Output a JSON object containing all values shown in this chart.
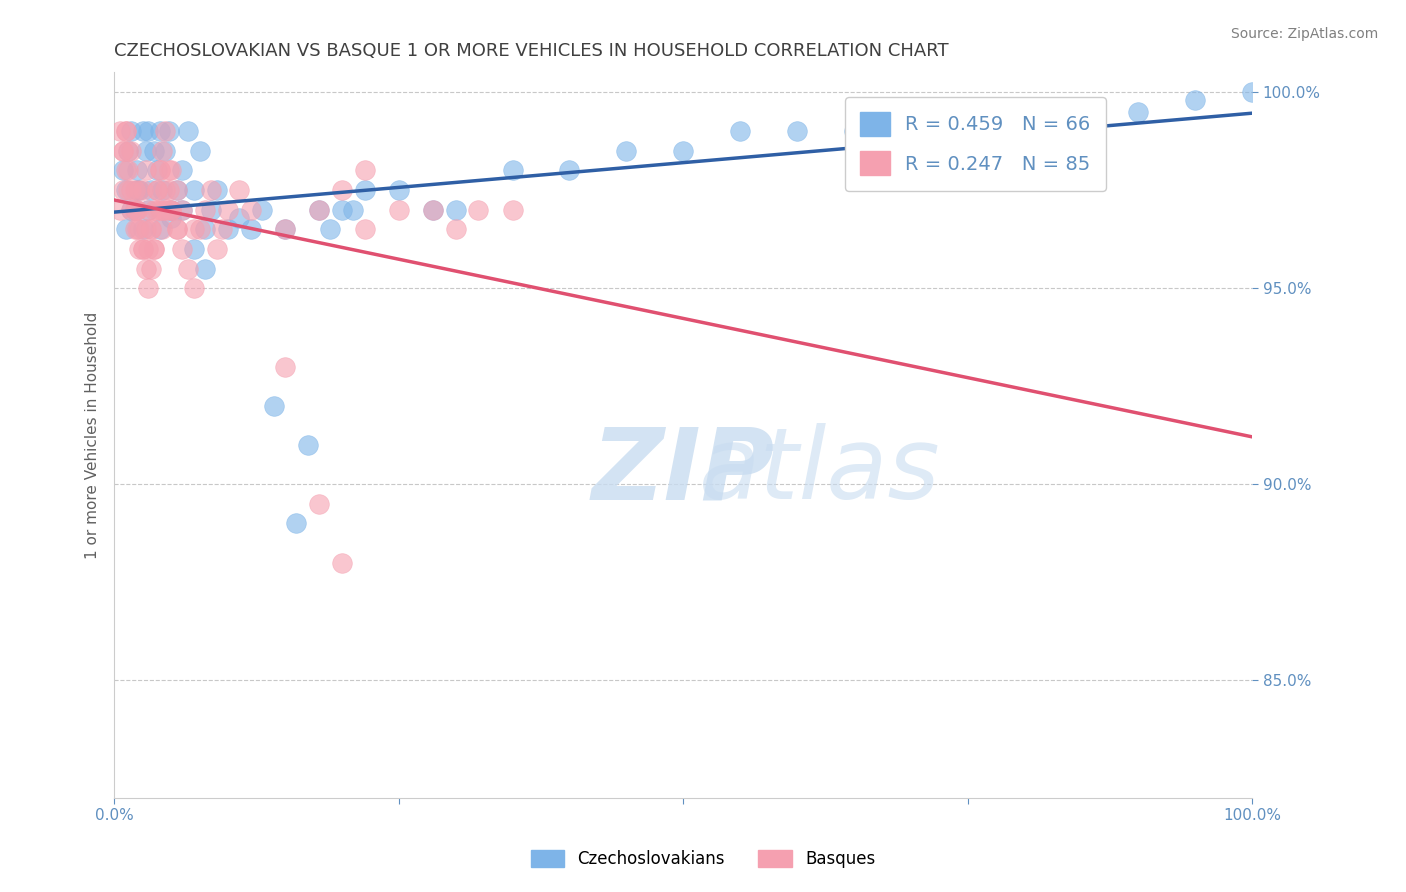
{
  "title": "CZECHOSLOVAKIAN VS BASQUE 1 OR MORE VEHICLES IN HOUSEHOLD CORRELATION CHART",
  "ylabel": "1 or more Vehicles in Household",
  "source_text": "Source: ZipAtlas.com",
  "legend_blue_r": "R = 0.459",
  "legend_blue_n": "N = 66",
  "legend_pink_r": "R = 0.247",
  "legend_pink_n": "N = 85",
  "xlim": [
    0.0,
    1.0
  ],
  "ylim": [
    0.82,
    1.005
  ],
  "yticks": [
    0.85,
    0.9,
    0.95,
    1.0
  ],
  "ytick_labels": [
    "85.0%",
    "90.0%",
    "95.0%",
    "100.0%"
  ],
  "xticks": [
    0.0,
    0.25,
    0.5,
    0.75,
    1.0
  ],
  "xtick_labels": [
    "0.0%",
    "",
    "",
    "",
    "100.0%"
  ],
  "blue_color": "#7EB4E8",
  "pink_color": "#F5A0B0",
  "blue_line_color": "#2F5FA5",
  "pink_line_color": "#E05070",
  "grid_color": "#C8C8C8",
  "title_color": "#404040",
  "axis_color": "#6090C0",
  "watermark_color": "#C8DCF0",
  "czech_x": [
    0.008,
    0.01,
    0.012,
    0.015,
    0.018,
    0.02,
    0.022,
    0.025,
    0.028,
    0.03,
    0.032,
    0.035,
    0.038,
    0.04,
    0.042,
    0.045,
    0.048,
    0.05,
    0.055,
    0.06,
    0.065,
    0.07,
    0.075,
    0.08,
    0.085,
    0.09,
    0.01,
    0.015,
    0.02,
    0.025,
    0.03,
    0.04,
    0.05,
    0.06,
    0.07,
    0.08,
    0.12,
    0.15,
    0.18,
    0.2,
    0.22,
    0.25,
    0.28,
    0.3,
    0.35,
    0.4,
    0.45,
    0.5,
    0.55,
    0.6,
    0.65,
    0.7,
    0.75,
    0.8,
    0.85,
    0.9,
    0.95,
    1.0,
    0.1,
    0.11,
    0.13,
    0.14,
    0.16,
    0.17,
    0.19,
    0.21
  ],
  "czech_y": [
    0.98,
    0.975,
    0.985,
    0.99,
    0.97,
    0.98,
    0.975,
    0.99,
    0.985,
    0.99,
    0.975,
    0.985,
    0.98,
    0.99,
    0.975,
    0.985,
    0.99,
    0.97,
    0.975,
    0.98,
    0.99,
    0.975,
    0.985,
    0.965,
    0.97,
    0.975,
    0.965,
    0.97,
    0.975,
    0.965,
    0.97,
    0.965,
    0.968,
    0.97,
    0.96,
    0.955,
    0.965,
    0.965,
    0.97,
    0.97,
    0.975,
    0.975,
    0.97,
    0.97,
    0.98,
    0.98,
    0.985,
    0.985,
    0.99,
    0.99,
    0.99,
    0.99,
    0.995,
    0.995,
    0.99,
    0.995,
    0.998,
    1.0,
    0.965,
    0.968,
    0.97,
    0.92,
    0.89,
    0.91,
    0.965,
    0.97
  ],
  "basque_x": [
    0.005,
    0.008,
    0.01,
    0.012,
    0.015,
    0.018,
    0.02,
    0.022,
    0.025,
    0.028,
    0.03,
    0.032,
    0.035,
    0.038,
    0.04,
    0.042,
    0.045,
    0.048,
    0.05,
    0.055,
    0.06,
    0.065,
    0.07,
    0.075,
    0.08,
    0.085,
    0.09,
    0.095,
    0.1,
    0.11,
    0.005,
    0.008,
    0.01,
    0.012,
    0.015,
    0.018,
    0.02,
    0.022,
    0.025,
    0.028,
    0.03,
    0.032,
    0.035,
    0.038,
    0.04,
    0.042,
    0.045,
    0.048,
    0.05,
    0.055,
    0.12,
    0.15,
    0.18,
    0.2,
    0.22,
    0.25,
    0.3,
    0.35,
    0.28,
    0.32,
    0.15,
    0.18,
    0.2,
    0.22,
    0.008,
    0.01,
    0.012,
    0.015,
    0.018,
    0.02,
    0.022,
    0.025,
    0.028,
    0.03,
    0.032,
    0.035,
    0.038,
    0.04,
    0.042,
    0.045,
    0.048,
    0.05,
    0.055,
    0.06,
    0.07
  ],
  "basque_y": [
    0.99,
    0.985,
    0.99,
    0.98,
    0.985,
    0.975,
    0.97,
    0.965,
    0.96,
    0.955,
    0.96,
    0.965,
    0.97,
    0.975,
    0.98,
    0.985,
    0.99,
    0.975,
    0.97,
    0.965,
    0.96,
    0.955,
    0.95,
    0.965,
    0.97,
    0.975,
    0.96,
    0.965,
    0.97,
    0.975,
    0.97,
    0.975,
    0.98,
    0.975,
    0.97,
    0.965,
    0.97,
    0.975,
    0.96,
    0.965,
    0.95,
    0.955,
    0.96,
    0.97,
    0.98,
    0.97,
    0.975,
    0.98,
    0.97,
    0.965,
    0.97,
    0.965,
    0.97,
    0.975,
    0.98,
    0.97,
    0.965,
    0.97,
    0.97,
    0.97,
    0.93,
    0.895,
    0.88,
    0.965,
    0.985,
    0.99,
    0.985,
    0.975,
    0.97,
    0.965,
    0.96,
    0.975,
    0.98,
    0.97,
    0.965,
    0.96,
    0.975,
    0.97,
    0.965,
    0.97,
    0.97,
    0.98,
    0.975,
    0.97,
    0.965
  ]
}
